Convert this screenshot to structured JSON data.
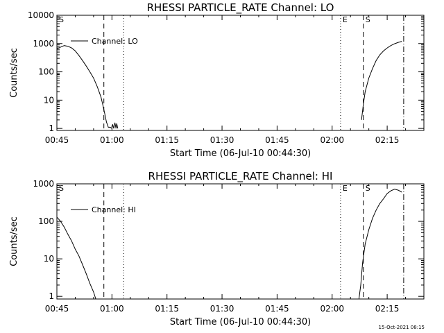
{
  "footer": {
    "timestamp": "15-Oct-2021 08:15"
  },
  "chart_data": [
    {
      "type": "line",
      "title": "RHESSI PARTICLE_RATE Channel: LO",
      "xlabel": "Start Time (06-Jul-10 00:44:30)",
      "ylabel": "Counts/sec",
      "yscale": "log",
      "xlim": [
        0,
        100
      ],
      "ylim": [
        0.85,
        10000
      ],
      "x_unit": "minutes after 00:45",
      "xticks": [
        0,
        15,
        30,
        45,
        60,
        75,
        90
      ],
      "xtick_labels": [
        "00:45",
        "01:00",
        "01:15",
        "01:30",
        "01:45",
        "02:00",
        "02:15"
      ],
      "yticks": [
        1,
        10,
        100,
        1000,
        10000
      ],
      "ytick_labels": [
        "1",
        "10",
        "100",
        "1000",
        "10000"
      ],
      "legend": {
        "label": "Channel: LO",
        "placement": "top-left"
      },
      "event_lines": [
        {
          "x": 0,
          "style": "dash-dot",
          "label": "S"
        },
        {
          "x": 12.8,
          "style": "dashed",
          "label": ""
        },
        {
          "x": 18.2,
          "style": "dotted",
          "label": ""
        },
        {
          "x": 77.3,
          "style": "dotted",
          "label": "E"
        },
        {
          "x": 83.5,
          "style": "dashed",
          "label": "S"
        },
        {
          "x": 94.5,
          "style": "dash-dot",
          "label": ""
        }
      ],
      "series": [
        {
          "name": "Channel: LO",
          "segments": [
            [
              [
                0,
                650
              ],
              [
                1,
                750
              ],
              [
                2,
                850
              ],
              [
                3,
                800
              ],
              [
                4,
                700
              ],
              [
                5,
                550
              ],
              [
                6,
                380
              ],
              [
                7,
                250
              ],
              [
                8,
                160
              ],
              [
                9,
                100
              ],
              [
                10,
                60
              ],
              [
                11,
                30
              ],
              [
                12,
                13
              ],
              [
                12.5,
                7
              ],
              [
                13,
                3.5
              ],
              [
                13.5,
                1.7
              ],
              [
                14,
                1.1
              ],
              [
                14.5,
                1.1
              ],
              [
                15,
                1
              ],
              [
                15.2,
                1.4
              ],
              [
                15.5,
                1
              ],
              [
                15.8,
                1.6
              ],
              [
                16.1,
                1
              ],
              [
                16.3,
                1.5
              ],
              [
                16.6,
                1
              ]
            ],
            [
              [
                83,
                2
              ],
              [
                83.5,
                7
              ],
              [
                84,
                20
              ],
              [
                85,
                60
              ],
              [
                86,
                130
              ],
              [
                87,
                250
              ],
              [
                88,
                400
              ],
              [
                89,
                550
              ],
              [
                90,
                700
              ],
              [
                91,
                850
              ],
              [
                92,
                980
              ],
              [
                93,
                1100
              ],
              [
                94,
                1200
              ]
            ]
          ]
        }
      ]
    },
    {
      "type": "line",
      "title": "RHESSI PARTICLE_RATE Channel: HI",
      "xlabel": "Start Time (06-Jul-10 00:44:30)",
      "ylabel": "Counts/sec",
      "yscale": "log",
      "xlim": [
        0,
        100
      ],
      "ylim": [
        0.85,
        1000
      ],
      "x_unit": "minutes after 00:45",
      "xticks": [
        0,
        15,
        30,
        45,
        60,
        75,
        90
      ],
      "xtick_labels": [
        "00:45",
        "01:00",
        "01:15",
        "01:30",
        "01:45",
        "02:00",
        "02:15"
      ],
      "yticks": [
        1,
        10,
        100,
        1000
      ],
      "ytick_labels": [
        "1",
        "10",
        "100",
        "1000"
      ],
      "legend": {
        "label": "Channel: HI",
        "placement": "top-left"
      },
      "event_lines": [
        {
          "x": 0,
          "style": "dash-dot",
          "label": "S"
        },
        {
          "x": 12.8,
          "style": "dashed",
          "label": ""
        },
        {
          "x": 18.2,
          "style": "dotted",
          "label": ""
        },
        {
          "x": 77.3,
          "style": "dotted",
          "label": "E"
        },
        {
          "x": 83.5,
          "style": "dashed",
          "label": "S"
        },
        {
          "x": 94.5,
          "style": "dash-dot",
          "label": ""
        }
      ],
      "series": [
        {
          "name": "Channel: HI",
          "segments": [
            [
              [
                0,
                130
              ],
              [
                1,
                100
              ],
              [
                2,
                70
              ],
              [
                3,
                45
              ],
              [
                4,
                30
              ],
              [
                5,
                18
              ],
              [
                6,
                12
              ],
              [
                7,
                7
              ],
              [
                8,
                4
              ],
              [
                9,
                2.2
              ],
              [
                10,
                1.3
              ],
              [
                10.6,
                0.85
              ]
            ],
            [
              [
                82.3,
                0.85
              ],
              [
                82.8,
                2
              ],
              [
                83.3,
                8
              ],
              [
                84,
                25
              ],
              [
                85,
                60
              ],
              [
                86,
                120
              ],
              [
                87,
                200
              ],
              [
                88,
                300
              ],
              [
                89,
                400
              ],
              [
                90,
                550
              ],
              [
                91,
                650
              ],
              [
                92,
                720
              ],
              [
                93,
                680
              ],
              [
                94,
                600
              ]
            ]
          ]
        }
      ]
    }
  ]
}
